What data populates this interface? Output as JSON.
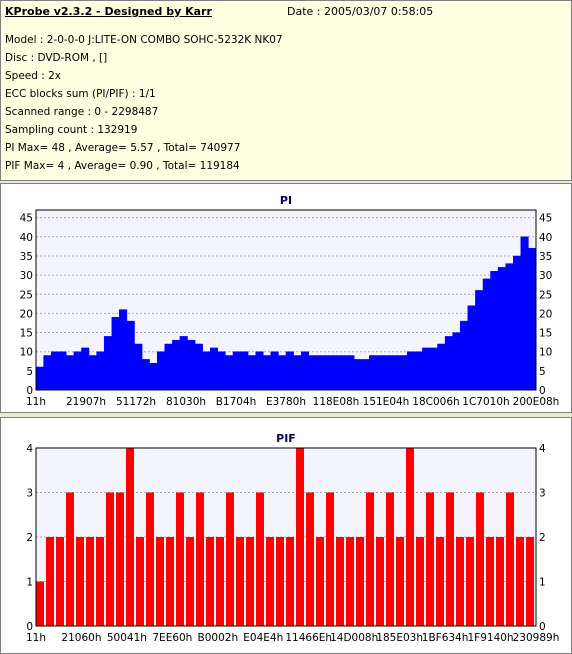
{
  "header": {
    "app_title": "KProbe v2.3.2 - Designed by Karr",
    "date": "Date : 2005/03/07 0:58:05"
  },
  "info": {
    "model": "Model : 2-0-0-0 J:LITE-ON COMBO SOHC-5232K NK07",
    "disc": "Disc : DVD-ROM ,  []",
    "speed": "Speed : 2x",
    "ecc": "ECC blocks sum (PI/PIF) : 1/1",
    "scanned": "Scanned range : 0 - 2298487",
    "sampling": "Sampling count : 132919",
    "pi": "PI Max= 48 , Average= 5.57 , Total= 740977",
    "pif": "PIF Max= 4 , Average= 0.90 , Total= 119184"
  },
  "colors": {
    "pi": "#0000ff",
    "pif": "#ff0000",
    "grid": "#aaaaaa",
    "plot_bg": "#f4f4ff"
  },
  "chart_data": [
    {
      "type": "area",
      "title": "PI",
      "ylim": [
        0,
        47
      ],
      "yticks": [
        0,
        5,
        10,
        15,
        20,
        25,
        30,
        35,
        40,
        45
      ],
      "xticks": [
        "11h",
        "21907h",
        "51172h",
        "81030h",
        "B1704h",
        "E3780h",
        "118E08h",
        "151E04h",
        "18C006h",
        "1C7010h",
        "200E08h"
      ],
      "grid": true,
      "series": [
        {
          "values": [
            6,
            9,
            10,
            10,
            9,
            10,
            11,
            9,
            10,
            14,
            19,
            21,
            18,
            12,
            8,
            7,
            10,
            12,
            13,
            14,
            13,
            12,
            10,
            11,
            10,
            9,
            10,
            10,
            9,
            10,
            9,
            10,
            9,
            10,
            9,
            10,
            9,
            9,
            9,
            9,
            9,
            9,
            8,
            8,
            9,
            9,
            9,
            9,
            9,
            10,
            10,
            11,
            11,
            12,
            14,
            15,
            18,
            22,
            26,
            29,
            31,
            32,
            33,
            35,
            40,
            37
          ]
        }
      ]
    },
    {
      "type": "bar",
      "title": "PIF",
      "ylim": [
        0,
        4
      ],
      "yticks": [
        0,
        1,
        2,
        3,
        4
      ],
      "xticks": [
        "11h",
        "21060h",
        "50041h",
        "7EE60h",
        "B0002h",
        "E04E4h",
        "11466Eh",
        "14D008h",
        "185E03h",
        "1BF634h",
        "1F9140h",
        "230989h"
      ],
      "grid": true,
      "series": [
        {
          "values": [
            1,
            2,
            2,
            3,
            2,
            2,
            2,
            3,
            3,
            4,
            2,
            3,
            2,
            2,
            3,
            2,
            3,
            2,
            2,
            3,
            2,
            2,
            3,
            2,
            2,
            2,
            4,
            3,
            2,
            3,
            2,
            2,
            2,
            3,
            2,
            3,
            2,
            4,
            2,
            3,
            2,
            3,
            2,
            2,
            3,
            2,
            2,
            3,
            2,
            2
          ]
        }
      ]
    }
  ]
}
